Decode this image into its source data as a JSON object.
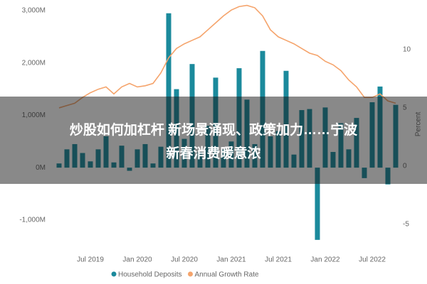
{
  "chart_data": {
    "type": "bar_line",
    "categories": [
      null,
      null,
      null,
      null,
      "Jul 2019",
      null,
      null,
      null,
      null,
      null,
      "Jan 2020",
      null,
      null,
      null,
      null,
      null,
      "Jul 2020",
      null,
      null,
      null,
      null,
      null,
      "Jan 2021",
      null,
      null,
      null,
      null,
      null,
      "Jul 2021",
      null,
      null,
      null,
      null,
      null,
      "Jan 2022",
      null,
      null,
      null,
      null,
      null,
      "Jul 2022",
      null,
      null,
      null
    ],
    "series": [
      {
        "name": "Household Deposits",
        "color": "#1b8a9c",
        "type": "bar",
        "values": [
          80,
          350,
          450,
          280,
          120,
          350,
          600,
          100,
          420,
          -60,
          350,
          450,
          80,
          400,
          2950,
          1500,
          550,
          1980,
          300,
          800,
          1720,
          350,
          500,
          1900,
          1300,
          450,
          2230,
          600,
          700,
          1850,
          250,
          1100,
          1120,
          -1380,
          1150,
          300,
          850,
          350,
          950,
          -200,
          1250,
          1550,
          -320,
          1200
        ]
      },
      {
        "name": "Annual Growth Rate",
        "color": "#f5a46c",
        "type": "line",
        "axis": "y2",
        "values": [
          5.0,
          5.2,
          5.4,
          5.9,
          6.3,
          6.6,
          6.8,
          6.2,
          6.8,
          7.1,
          6.8,
          6.9,
          7.1,
          8.0,
          9.3,
          10.1,
          10.5,
          10.8,
          11.1,
          11.7,
          12.3,
          12.9,
          13.4,
          13.7,
          13.8,
          13.6,
          12.9,
          11.7,
          11.1,
          10.8,
          10.5,
          10.1,
          9.7,
          9.5,
          9.0,
          8.7,
          8.2,
          7.4,
          6.8,
          5.9,
          5.9,
          6.2,
          5.6,
          5.4
        ]
      }
    ],
    "ylim": [
      -1450,
      3000
    ],
    "yticks": [
      {
        "value": -1000,
        "label": "-1,000M"
      },
      {
        "value": 0,
        "label": "0M"
      },
      {
        "value": 1000,
        "label": "1,000M"
      },
      {
        "value": 2000,
        "label": "2,000M"
      },
      {
        "value": 3000,
        "label": "3,000M"
      }
    ],
    "y2lim": [
      -6.65,
      13.35
    ],
    "y2ticks": [
      -5,
      0,
      5,
      10
    ],
    "y2_label": "Percent",
    "grid": false,
    "legend": "bottom"
  },
  "banner": {
    "lines": [
      "炒股如何加杠杆 新场景涌现、政策加力……宁波",
      "新春消费暖意浓"
    ]
  }
}
